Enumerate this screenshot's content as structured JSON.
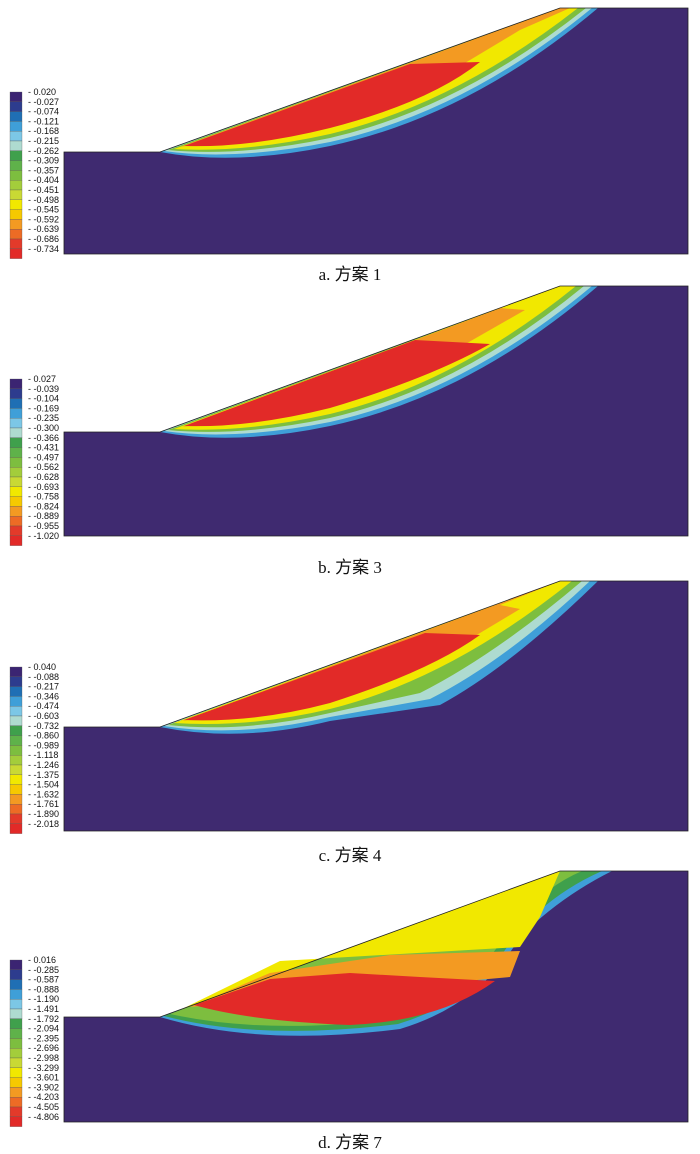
{
  "colors": {
    "background": "#ffffff",
    "rock": "#3f2a70",
    "scale": [
      "#3b2472",
      "#2d3c8e",
      "#1f6fb4",
      "#3f9fd8",
      "#7cc7e6",
      "#aedbd0",
      "#3fa04c",
      "#5fb24a",
      "#7dbe3f",
      "#a3cd3b",
      "#c9d934",
      "#f1e800",
      "#f6c900",
      "#f39a22",
      "#ed6b25",
      "#e33a2a",
      "#e22a28"
    ]
  },
  "chart_data": [
    {
      "type": "heatmap",
      "caption": "a. 方案 1",
      "legend_values": [
        "0.020",
        "-0.027",
        "-0.074",
        "-0.121",
        "-0.168",
        "-0.215",
        "-0.262",
        "-0.309",
        "-0.357",
        "-0.404",
        "-0.451",
        "-0.498",
        "-0.545",
        "-0.592",
        "-0.639",
        "-0.686",
        "-0.734"
      ]
    },
    {
      "type": "heatmap",
      "caption": "b. 方案 3",
      "legend_values": [
        "0.027",
        "-0.039",
        "-0.104",
        "-0.169",
        "-0.235",
        "-0.300",
        "-0.366",
        "-0.431",
        "-0.497",
        "-0.562",
        "-0.628",
        "-0.693",
        "-0.758",
        "-0.824",
        "-0.889",
        "-0.955",
        "-1.020"
      ]
    },
    {
      "type": "heatmap",
      "caption": "c. 方案 4",
      "legend_values": [
        "0.040",
        "-0.088",
        "-0.217",
        "-0.346",
        "-0.474",
        "-0.603",
        "-0.732",
        "-0.860",
        "-0.989",
        "-1.118",
        "-1.246",
        "-1.375",
        "-1.504",
        "-1.632",
        "-1.761",
        "-1.890",
        "-2.018"
      ]
    },
    {
      "type": "heatmap",
      "caption": "d. 方案 7",
      "legend_values": [
        "0.016",
        "-0.285",
        "-0.587",
        "-0.888",
        "-1.190",
        "-1.491",
        "-1.792",
        "-2.094",
        "-2.395",
        "-2.696",
        "-2.998",
        "-3.299",
        "-3.601",
        "-3.902",
        "-4.203",
        "-4.505",
        "-4.806"
      ]
    }
  ]
}
